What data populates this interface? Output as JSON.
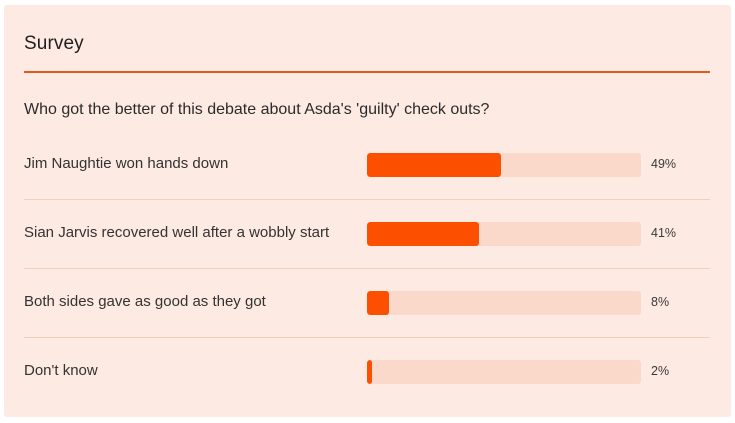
{
  "survey": {
    "title": "Survey",
    "question": "Who got the better of this debate about Asda's 'guilty' check outs?",
    "options": [
      {
        "label": "Jim Naughtie won hands down",
        "percent_text": "49%",
        "value": 49
      },
      {
        "label": "Sian Jarvis recovered well after a wobbly start",
        "percent_text": "41%",
        "value": 41
      },
      {
        "label": "Both sides gave as good as they got",
        "percent_text": "8%",
        "value": 8
      },
      {
        "label": "Don't know",
        "percent_text": "2%",
        "value": 2
      }
    ]
  },
  "colors": {
    "card_background": "#fdeae2",
    "accent": "#fc5000",
    "rule": "#e05a1a",
    "bar_track": "#fbd9ca"
  }
}
